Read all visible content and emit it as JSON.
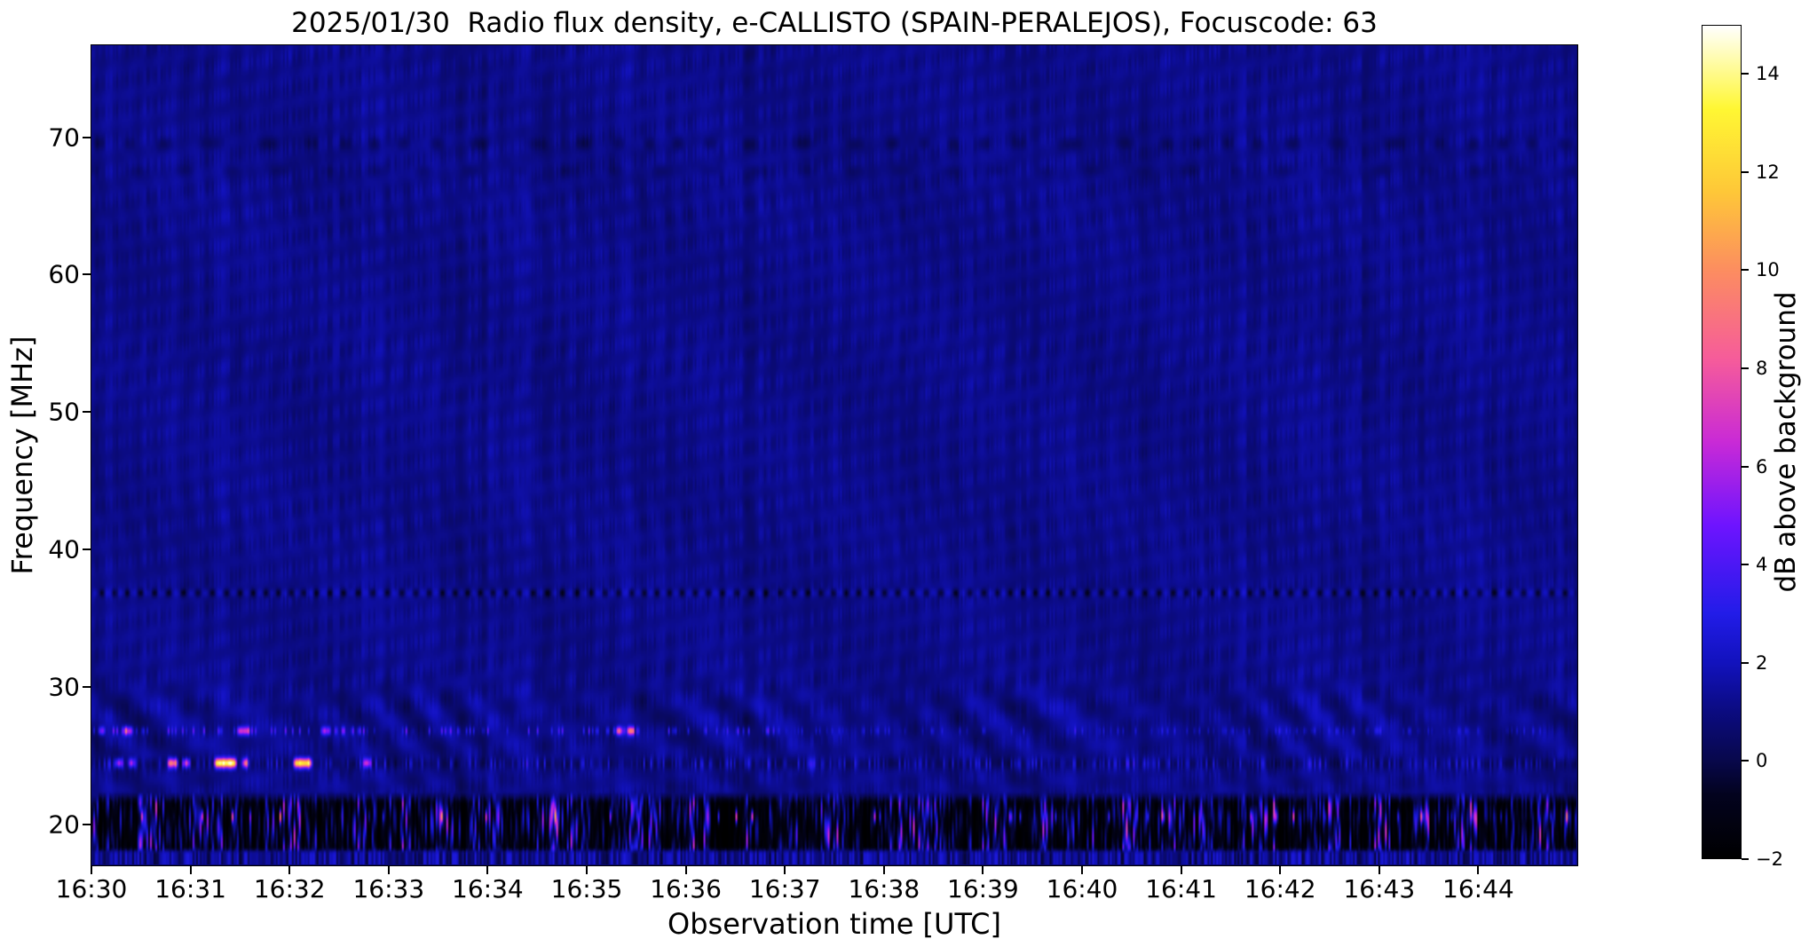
{
  "chart_data": {
    "type": "heatmap",
    "title": "2025/01/30  Radio flux density, e-CALLISTO (SPAIN-PERALEJOS), Focuscode: 63",
    "xlabel": "Observation time [UTC]",
    "ylabel": "Frequency [MHz]",
    "x_start": "16:30",
    "x_end": "16:45",
    "x_tick_labels": [
      "16:30",
      "16:31",
      "16:32",
      "16:33",
      "16:34",
      "16:35",
      "16:36",
      "16:37",
      "16:38",
      "16:39",
      "16:40",
      "16:41",
      "16:42",
      "16:43",
      "16:44"
    ],
    "y_ticks_mhz": [
      20,
      30,
      40,
      50,
      60,
      70
    ],
    "y_range_mhz": [
      17.0,
      76.7
    ],
    "background_level_db": 1.2,
    "colorbar": {
      "label": "dB above background",
      "ticks": [
        14,
        12,
        10,
        8,
        6,
        4,
        2,
        0,
        -2
      ],
      "vmin": -2,
      "vmax": 15,
      "colormap": "gnuplot2-like (black-blue-violet-magenta-pink-orange-yellow-white)",
      "stops": [
        [
          -2,
          0,
          0,
          0
        ],
        [
          -0.7,
          3,
          3,
          30
        ],
        [
          0,
          8,
          8,
          76
        ],
        [
          1,
          11,
          11,
          128
        ],
        [
          2,
          18,
          18,
          189
        ],
        [
          3,
          34,
          28,
          232
        ],
        [
          4.8,
          110,
          20,
          255
        ],
        [
          6.5,
          201,
          42,
          214
        ],
        [
          8.2,
          246,
          92,
          154
        ],
        [
          10,
          252,
          141,
          96
        ],
        [
          11.6,
          254,
          199,
          56
        ],
        [
          13.3,
          255,
          247,
          51
        ],
        [
          15,
          255,
          255,
          255
        ]
      ]
    },
    "features": {
      "rfi_line": {
        "freq_mhz": 36.85,
        "desc": "dashed horizontal RFI line alternating dark and bright segments",
        "depth_db": -1.6,
        "bright_db": 0.8
      },
      "dark_bands_high": [
        {
          "freq_mhz": 69.6,
          "depth_db": -0.8
        },
        {
          "freq_mhz": 67.6,
          "depth_db": -0.5
        }
      ],
      "fringe_band": {
        "freq_range_mhz": [
          22.5,
          30.5
        ],
        "desc": "wavy ionospheric interference fringes / chevron ripples",
        "amplitude_db": 1.2
      },
      "station_row_26_8": {
        "freq_mhz": 26.8,
        "desc": "intermittent magenta speckles",
        "bursts_min_start_end_peakdb": [
          [
            0.05,
            0.14,
            4
          ],
          [
            0.3,
            0.42,
            5
          ],
          [
            1.45,
            1.6,
            5.5
          ],
          [
            2.3,
            2.42,
            4
          ],
          [
            5.28,
            5.36,
            8
          ],
          [
            5.39,
            5.48,
            8
          ]
        ]
      },
      "station_row_24_4": {
        "freq_mhz": 24.45,
        "desc": "strong intermittent bursts with orange/yellow cores, mainly 16:30-16:33",
        "bursts_min_start_end_peakdb": [
          [
            0.22,
            0.32,
            6
          ],
          [
            0.35,
            0.44,
            6
          ],
          [
            0.75,
            0.88,
            8
          ],
          [
            0.9,
            1.0,
            7
          ],
          [
            1.22,
            1.47,
            13
          ],
          [
            1.5,
            1.59,
            8
          ],
          [
            2.02,
            2.23,
            12
          ],
          [
            2.72,
            2.83,
            6
          ]
        ],
        "dark_speckled_lane_db": [
          -0.9,
          2.2
        ]
      },
      "bottom_band": {
        "freq_range_mhz": [
          17.9,
          22.35
        ],
        "desc": "strong striated HF interference band: alternating black and bright blue columns with magenta/pink speckles near 20.5 MHz, brighter and pinker after 16:39",
        "speckle_freq_mhz": 20.55,
        "dark_notches_min": [
          [
            6.28,
            6.62
          ],
          [
            9.33,
            9.52
          ],
          [
            11.95,
            12.12
          ]
        ],
        "enhanced_after_min": 9.2
      },
      "bottom_strip": {
        "freq_range_mhz": [
          17.0,
          18.35
        ],
        "desc": "bright blue speckled strip along the bottom edge"
      }
    }
  }
}
